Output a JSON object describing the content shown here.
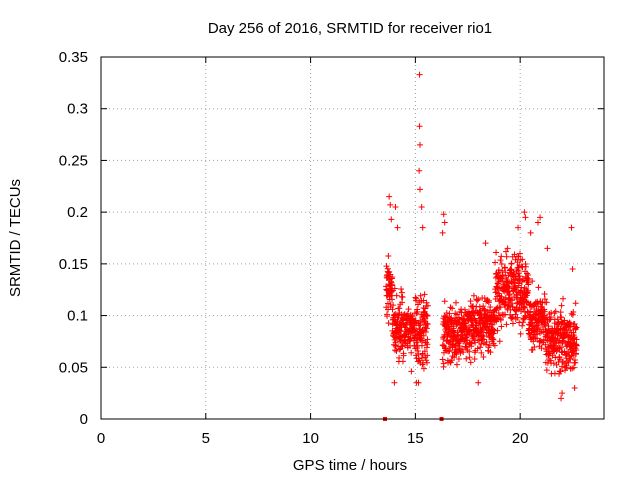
{
  "chart_data": {
    "type": "scatter",
    "title": "Day 256 of 2016, SRMTID for receiver rio1",
    "xlabel": "GPS time / hours",
    "ylabel": "SRMTID / TECUs",
    "xlim": [
      0,
      24
    ],
    "ylim": [
      0,
      0.35
    ],
    "xticks": [
      0,
      5,
      10,
      15,
      20
    ],
    "yticks": [
      0,
      0.05,
      0.1,
      0.15,
      0.2,
      0.25,
      0.3,
      0.35
    ],
    "xtick_labels": [
      "0",
      "5",
      "10",
      "15",
      "20"
    ],
    "ytick_labels": [
      "0",
      "0.05",
      "0.1",
      "0.15",
      "0.2",
      "0.25",
      "0.3",
      "0.35"
    ],
    "grid": true,
    "marker": "+",
    "color": "#ff0000",
    "zero_markers": [
      13.55,
      16.25
    ],
    "series": [
      {
        "name": "SRMTID",
        "segments": [
          {
            "x_start": 13.6,
            "x_end": 13.9,
            "y_min": 0.08,
            "y_max": 0.175
          },
          {
            "x_start": 13.9,
            "x_end": 14.4,
            "y_min": 0.045,
            "y_max": 0.135
          },
          {
            "x_start": 14.4,
            "x_end": 15.0,
            "y_min": 0.045,
            "y_max": 0.12
          },
          {
            "x_start": 15.0,
            "x_end": 15.6,
            "y_min": 0.04,
            "y_max": 0.13
          },
          {
            "x_start": 16.3,
            "x_end": 17.5,
            "y_min": 0.045,
            "y_max": 0.12
          },
          {
            "x_start": 17.5,
            "x_end": 18.8,
            "y_min": 0.05,
            "y_max": 0.13
          },
          {
            "x_start": 18.8,
            "x_end": 20.4,
            "y_min": 0.07,
            "y_max": 0.175
          },
          {
            "x_start": 20.4,
            "x_end": 21.2,
            "y_min": 0.05,
            "y_max": 0.14
          },
          {
            "x_start": 21.2,
            "x_end": 22.7,
            "y_min": 0.03,
            "y_max": 0.12
          }
        ],
        "highlights": [
          {
            "x": 13.75,
            "y": 0.215
          },
          {
            "x": 13.8,
            "y": 0.207
          },
          {
            "x": 13.85,
            "y": 0.193
          },
          {
            "x": 14.05,
            "y": 0.205
          },
          {
            "x": 14.15,
            "y": 0.185
          },
          {
            "x": 15.2,
            "y": 0.333
          },
          {
            "x": 15.2,
            "y": 0.283
          },
          {
            "x": 15.22,
            "y": 0.265
          },
          {
            "x": 15.18,
            "y": 0.24
          },
          {
            "x": 15.22,
            "y": 0.222
          },
          {
            "x": 15.3,
            "y": 0.205
          },
          {
            "x": 15.35,
            "y": 0.185
          },
          {
            "x": 16.35,
            "y": 0.198
          },
          {
            "x": 16.3,
            "y": 0.18
          },
          {
            "x": 16.4,
            "y": 0.19
          },
          {
            "x": 18.35,
            "y": 0.17
          },
          {
            "x": 19.4,
            "y": 0.165
          },
          {
            "x": 19.9,
            "y": 0.185
          },
          {
            "x": 20.2,
            "y": 0.2
          },
          {
            "x": 20.25,
            "y": 0.195
          },
          {
            "x": 20.5,
            "y": 0.18
          },
          {
            "x": 20.95,
            "y": 0.195
          },
          {
            "x": 20.85,
            "y": 0.19
          },
          {
            "x": 21.3,
            "y": 0.165
          },
          {
            "x": 22.45,
            "y": 0.185
          },
          {
            "x": 22.5,
            "y": 0.145
          },
          {
            "x": 21.95,
            "y": 0.02
          },
          {
            "x": 22.0,
            "y": 0.025
          },
          {
            "x": 22.6,
            "y": 0.03
          },
          {
            "x": 14.0,
            "y": 0.035
          },
          {
            "x": 15.05,
            "y": 0.035
          },
          {
            "x": 15.15,
            "y": 0.035
          },
          {
            "x": 18.0,
            "y": 0.035
          }
        ]
      }
    ]
  }
}
